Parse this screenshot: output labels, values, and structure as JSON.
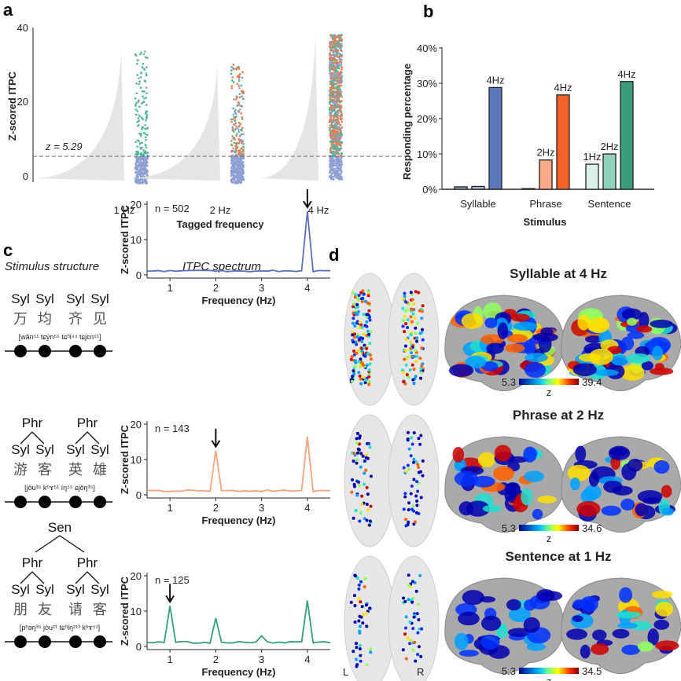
{
  "panels": {
    "a": "a",
    "b": "b",
    "c": "c",
    "d": "d"
  },
  "chart_data": [
    {
      "type": "scatter",
      "panel": "a",
      "ylabel": "Z-scored ITPC",
      "xlabel": "Tagged frequency",
      "categories": [
        "1 Hz",
        "2 Hz",
        "4 Hz"
      ],
      "ylim": [
        0,
        40
      ],
      "yticks": [
        "0",
        "20",
        "40"
      ],
      "threshold": 5.29,
      "threshold_label": "z = 5.29",
      "colors": [
        "#8f9fd4",
        "#f07a4a",
        "#4db895"
      ]
    },
    {
      "type": "bar",
      "panel": "b",
      "ylabel": "Responding percentage",
      "xlabel": "Stimulus",
      "categories": [
        "Syllable",
        "Phrase",
        "Sentence"
      ],
      "yticks": [
        "0%",
        "10%",
        "20%",
        "30%",
        "40%"
      ],
      "ylim": [
        0,
        40
      ],
      "groups": [
        {
          "name": "Syllable",
          "values": [
            0.7,
            0.8,
            28.8
          ],
          "labels": [
            "",
            "",
            "4Hz"
          ],
          "colors": [
            "#8fa0cc",
            "#aab8dd",
            "#5b78b8"
          ]
        },
        {
          "name": "Phrase",
          "values": [
            0.2,
            8.3,
            26.7
          ],
          "labels": [
            "",
            "2Hz",
            "4Hz"
          ],
          "colors": [
            "#555",
            "#f9aa88",
            "#f26229"
          ]
        },
        {
          "name": "Sentence",
          "values": [
            7.1,
            10.0,
            30.5
          ],
          "labels": [
            "1Hz",
            "2Hz",
            "4Hz"
          ],
          "colors": [
            "#dcefe9",
            "#8fd2bd",
            "#3a9e7e"
          ]
        }
      ]
    },
    {
      "type": "line",
      "panel": "c",
      "xlabel": "Frequency (Hz)",
      "ylabel": "Z-scored ITPC",
      "xlim": [
        0.5,
        4.5
      ],
      "ylim": [
        0,
        20
      ],
      "xticks": [
        "1",
        "2",
        "3",
        "4"
      ],
      "yticks": [
        "0",
        "10",
        "20"
      ],
      "plots": [
        {
          "n": "n = 502",
          "color": "#5b70b8",
          "peaks": [
            [
              4,
              18
            ]
          ],
          "arrow": 4
        },
        {
          "n": "n = 143",
          "color": "#f4a37e",
          "peaks": [
            [
              2,
              12.5
            ],
            [
              4,
              16.5
            ]
          ],
          "arrow": 2
        },
        {
          "n": "n = 125",
          "color": "#35a07a",
          "peaks": [
            [
              1,
              11.5
            ],
            [
              2,
              8
            ],
            [
              3,
              3
            ],
            [
              4,
              13
            ]
          ],
          "arrow": 1
        }
      ]
    }
  ],
  "c_headers": {
    "structure": "Stimulus structure",
    "spectrum": "ITPC spectrum"
  },
  "stimuli": [
    {
      "syl": "Syl",
      "phr": "",
      "sen": "",
      "chars": [
        "万",
        "均",
        "齐",
        "见"
      ],
      "ipa": "[wân⁵¹ tɕýn⁵⁵ tɕʰǐ⁴⁴ tɕjɛn⁵¹]"
    },
    {
      "syl": "Syl",
      "phr": "Phr",
      "sen": "",
      "chars": [
        "游",
        "客",
        "英",
        "雄"
      ],
      "ipa": "[jǒu³⁵ kʰɤ⁵¹ íŋ⁵⁵ ɕjǒŋ³⁵]"
    },
    {
      "syl": "Syl",
      "phr": "Phr",
      "sen": "Sen",
      "chars": [
        "朋",
        "友",
        "请",
        "客"
      ],
      "ipa": "[pʰəŋ³⁵ jòu²¹ tɕʰǐŋ²¹³ kʰɤ⁵¹]"
    }
  ],
  "d": {
    "titles": [
      "Syllable at 4 Hz",
      "Phrase at 2 Hz",
      "Sentence at 1 Hz"
    ],
    "colorbars": [
      {
        "min": "5.3",
        "max": "39.4",
        "label": "z"
      },
      {
        "min": "5.3",
        "max": "34.6",
        "label": "z"
      },
      {
        "min": "5.3",
        "max": "34.5",
        "label": "z"
      }
    ],
    "hemi_left": "L",
    "hemi_right": "R"
  }
}
